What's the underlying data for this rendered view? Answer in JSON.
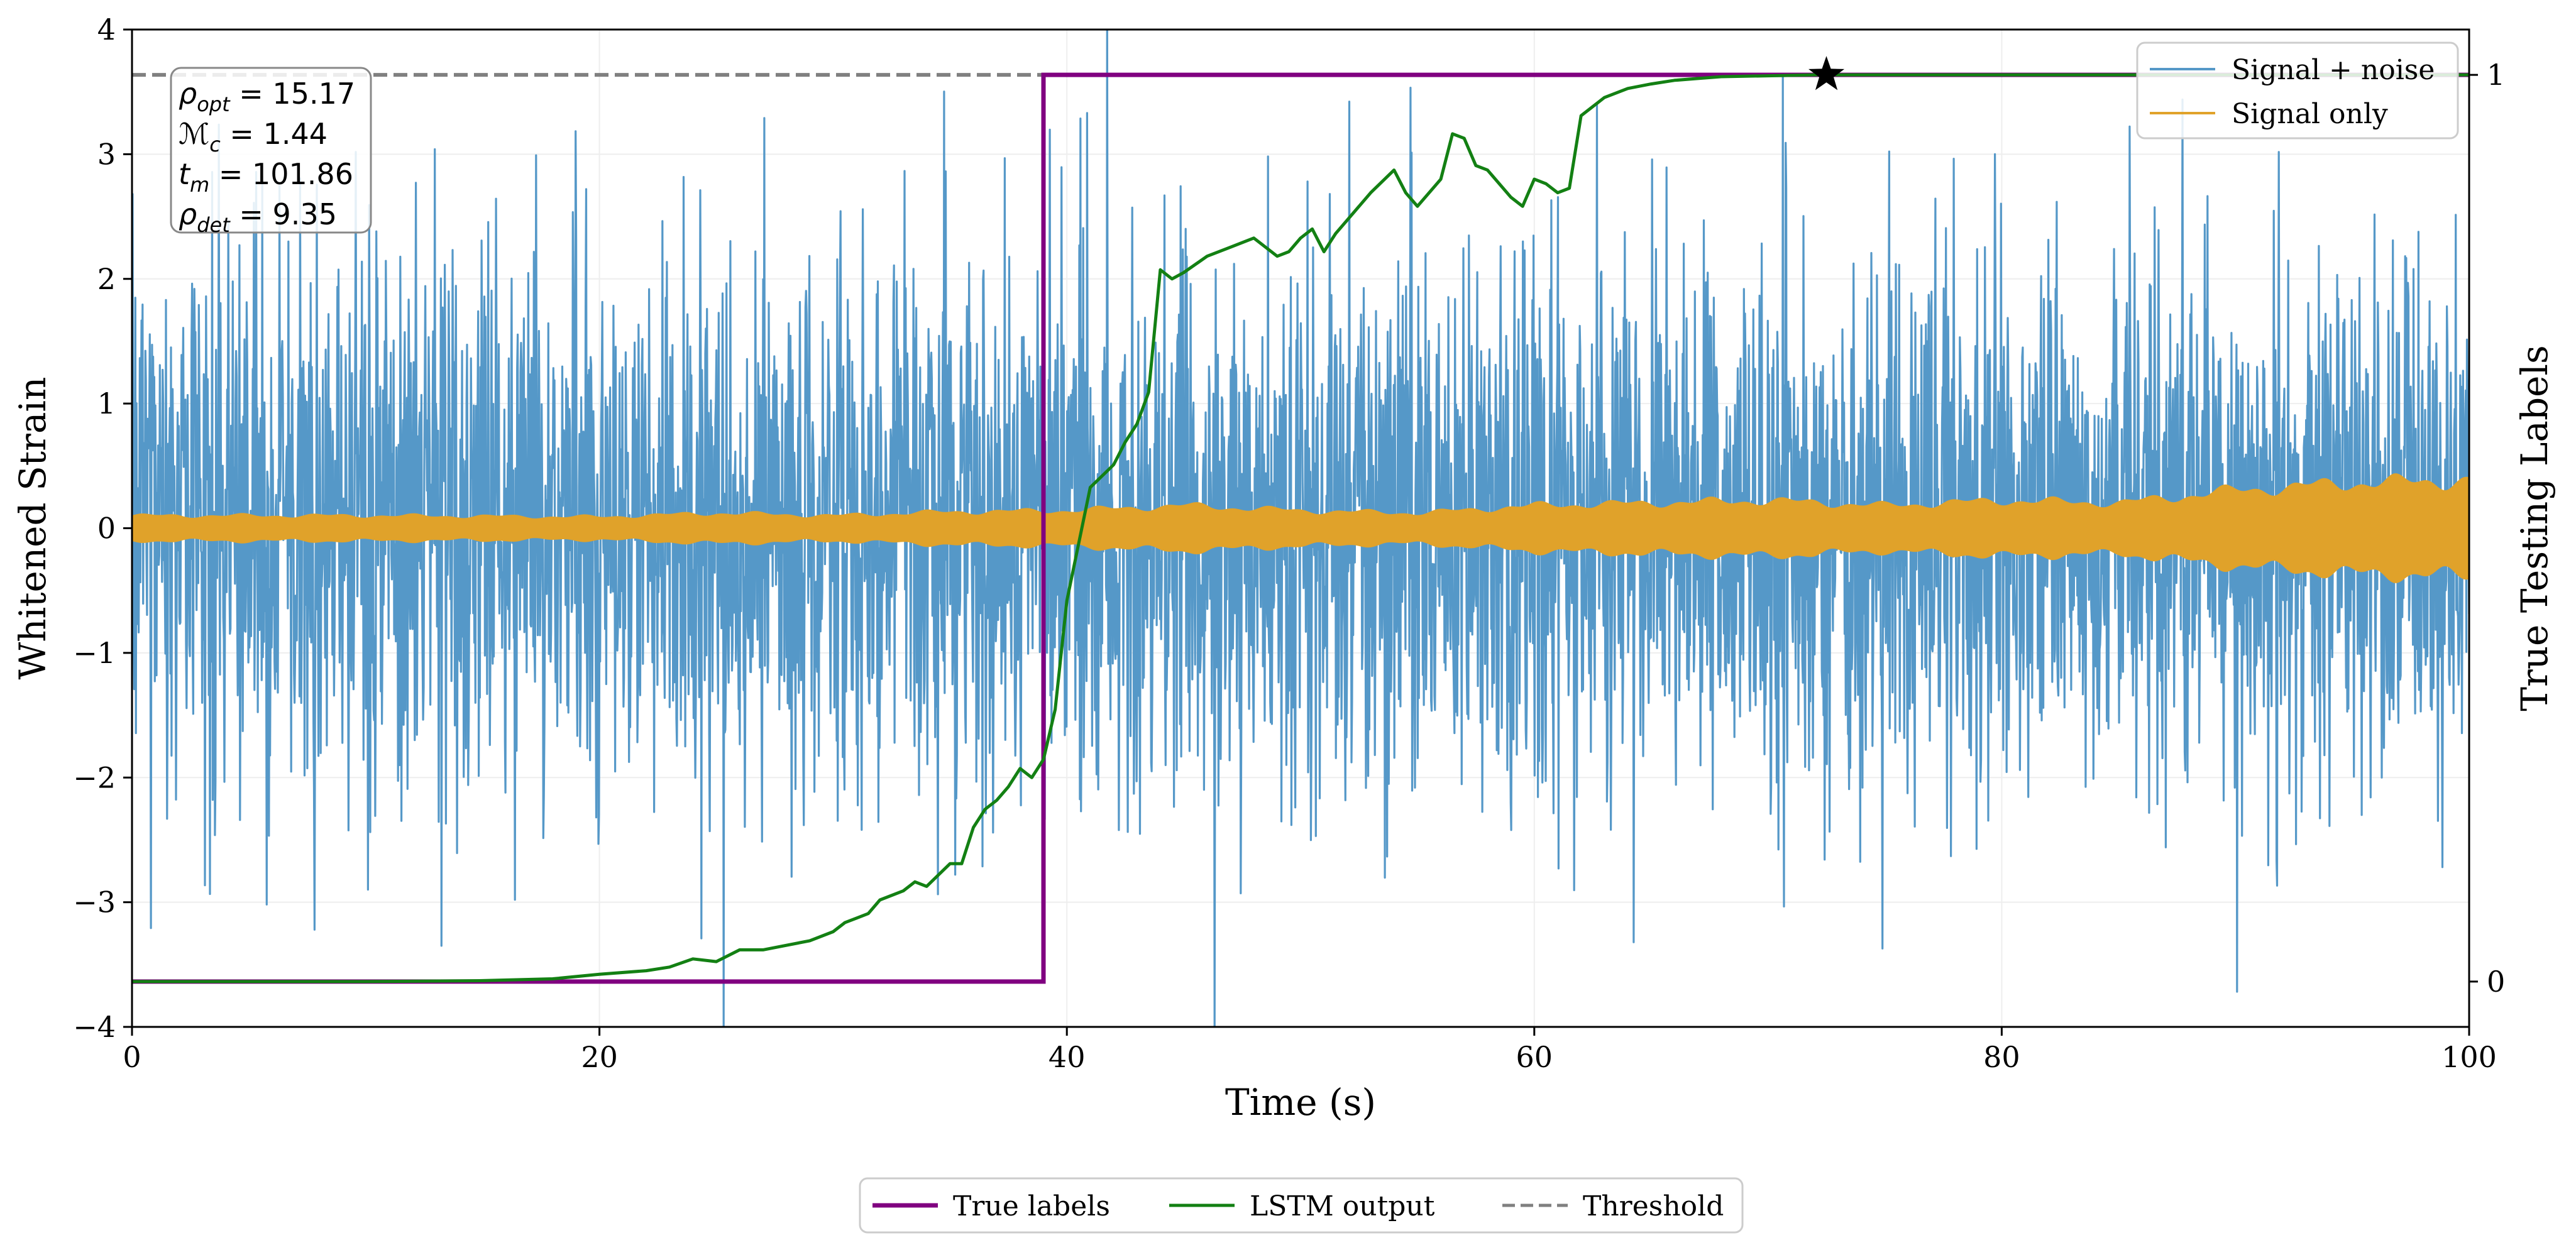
{
  "chart_data": {
    "type": "line",
    "xlabel": "Time (s)",
    "ylabel": "Whitened Strain",
    "ylabel_right": "True Testing Labels",
    "xlim": [
      0,
      100
    ],
    "ylim": [
      -4,
      4
    ],
    "ylim_right": [
      -0.05,
      1.05
    ],
    "x_ticks": [
      0,
      20,
      40,
      60,
      80,
      100
    ],
    "x_tick_labels": [
      "0",
      "20",
      "40",
      "60",
      "80",
      "100"
    ],
    "y_ticks": [
      -4,
      -3,
      -2,
      -1,
      0,
      1,
      2,
      3,
      4
    ],
    "y_tick_labels": [
      "−4",
      "−3",
      "−2",
      "−1",
      "0",
      "1",
      "2",
      "3",
      "4"
    ],
    "y_right_ticks": [
      0,
      1
    ],
    "y_right_tick_labels": [
      "0",
      "1"
    ],
    "grid": true,
    "noise_colors": {
      "signal_noise": "#5598c8",
      "signal_only": "#e0a22a"
    },
    "series": [
      {
        "name": "Signal + noise",
        "axis": "left",
        "color": "#5598c8",
        "kind": "noise",
        "duration": 100,
        "approx_std": 1.1
      },
      {
        "name": "Signal only",
        "axis": "left",
        "color": "#e0a22a",
        "kind": "envelope",
        "x": [
          0,
          10,
          20,
          25,
          30,
          35,
          40,
          45,
          50,
          55,
          60,
          65,
          70,
          75,
          80,
          85,
          90,
          95,
          100
        ],
        "amplitude": [
          0.1,
          0.1,
          0.09,
          0.12,
          0.1,
          0.13,
          0.14,
          0.18,
          0.14,
          0.12,
          0.18,
          0.2,
          0.22,
          0.18,
          0.22,
          0.2,
          0.3,
          0.36,
          0.38
        ]
      },
      {
        "name": "True labels",
        "axis": "right",
        "color": "#800080",
        "x": [
          0,
          39,
          39,
          100
        ],
        "y": [
          0,
          0,
          1,
          1
        ]
      },
      {
        "name": "LSTM output",
        "axis": "right",
        "color": "#138013",
        "x": [
          0,
          10,
          15,
          18,
          20,
          22,
          23,
          24,
          25,
          26,
          27,
          28,
          29,
          30,
          30.5,
          31,
          31.5,
          32,
          33,
          33.5,
          34,
          35,
          35.5,
          36,
          36.5,
          37,
          37.5,
          38,
          38.5,
          39,
          39.5,
          40,
          41,
          42,
          42.5,
          43,
          43.5,
          44,
          44.5,
          45,
          46,
          47,
          48,
          49,
          49.5,
          50,
          50.5,
          51,
          51.5,
          52,
          53,
          54,
          54.5,
          55,
          56,
          56.5,
          57,
          57.5,
          58,
          59,
          59.5,
          60,
          60.5,
          61,
          61.5,
          62,
          62.5,
          63,
          64,
          65,
          66,
          67,
          68,
          70,
          72,
          72.5,
          75,
          100
        ],
        "y": [
          0,
          0,
          0.001,
          0.003,
          0.008,
          0.012,
          0.016,
          0.025,
          0.022,
          0.035,
          0.035,
          0.04,
          0.045,
          0.055,
          0.065,
          0.07,
          0.075,
          0.09,
          0.1,
          0.11,
          0.105,
          0.13,
          0.13,
          0.17,
          0.19,
          0.2,
          0.215,
          0.235,
          0.225,
          0.245,
          0.3,
          0.42,
          0.545,
          0.57,
          0.595,
          0.615,
          0.65,
          0.785,
          0.775,
          0.782,
          0.8,
          0.81,
          0.82,
          0.8,
          0.805,
          0.82,
          0.83,
          0.805,
          0.825,
          0.84,
          0.87,
          0.895,
          0.87,
          0.855,
          0.885,
          0.935,
          0.93,
          0.9,
          0.895,
          0.865,
          0.855,
          0.885,
          0.88,
          0.87,
          0.875,
          0.955,
          0.965,
          0.975,
          0.985,
          0.99,
          0.994,
          0.996,
          0.998,
          0.999,
          1.0,
          1.0,
          1.0,
          1.0
        ]
      },
      {
        "name": "Threshold",
        "axis": "right",
        "color": "#808080",
        "value": 1.0
      }
    ],
    "marker": {
      "type": "star",
      "x": 72.5,
      "y": 1.0,
      "axis": "right",
      "color": "#000000"
    },
    "legend_top": {
      "placement": "top-right",
      "entries": [
        "Signal + noise",
        "Signal only"
      ]
    },
    "legend_bottom": {
      "placement": "bottom-center",
      "entries": [
        "True labels",
        "LSTM output",
        "Threshold"
      ]
    },
    "annotation_box": {
      "placement": "top-left",
      "lines": [
        {
          "sym": "ρ",
          "sub": "opt",
          "eq": " = 15.17"
        },
        {
          "sym": "ℳ",
          "sub": "c",
          "eq": " = 1.44"
        },
        {
          "sym": "t",
          "sub": "m",
          "eq": " = 101.86"
        },
        {
          "sym": "ρ",
          "sub": "det",
          "eq": " = 9.35"
        }
      ]
    }
  }
}
